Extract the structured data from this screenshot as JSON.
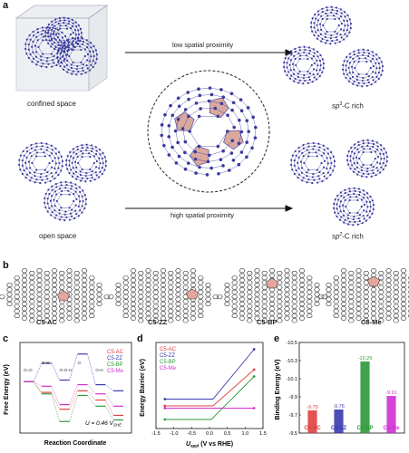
{
  "panel_a": {
    "label": "a",
    "top_arrow_label": "low spatial proximity",
    "bottom_arrow_label": "high spatial proximity",
    "left_top_caption": "confined space",
    "left_bottom_caption": "open space",
    "right_top_caption_main": "sp",
    "right_top_caption_sup": "3",
    "right_top_caption_tail": "-C rich",
    "right_bottom_caption_main": "sp",
    "right_bottom_caption_sup": "2",
    "right_bottom_caption_tail": "-C rich",
    "atom_color": "#3b3a9e",
    "face_color": "#d9a9a0"
  },
  "panel_b": {
    "label": "b",
    "models": [
      {
        "name": "C5-AC"
      },
      {
        "name": "C5-ZZ"
      },
      {
        "name": "C5-BP"
      },
      {
        "name": "C5-Me"
      }
    ],
    "sheet_color": "#3f3f3f",
    "pentagon_color": "#e7a49a"
  },
  "chart_data": [
    {
      "panel": "c",
      "type": "line",
      "ylabel": "Free Energy (eV)",
      "xlabel": "Reaction Coordinate",
      "annotation": "U = 0.46 V",
      "annotation_sub": "SHE",
      "legend_placement": "top-right",
      "series": [
        {
          "name": "C5-AC",
          "color": "#e04040",
          "values": [
            0,
            -0.35,
            -0.9,
            -0.3,
            -0.6,
            -1.1
          ]
        },
        {
          "name": "C5-ZZ",
          "color": "#3a3ab0",
          "values": [
            0,
            0.6,
            0.05,
            0.9,
            -0.1,
            -0.3
          ]
        },
        {
          "name": "C5-BP",
          "color": "#2c9a3a",
          "values": [
            0,
            -0.4,
            -1.3,
            -0.45,
            -0.8,
            -1.25
          ]
        },
        {
          "name": "C5-Me",
          "color": "#d030d0",
          "values": [
            0,
            -0.15,
            -0.75,
            -0.1,
            -0.4,
            -0.8
          ]
        }
      ],
      "step_labels": [
        "O=O",
        "O-O",
        "O-O-H",
        "O",
        "O-H"
      ]
    },
    {
      "panel": "d",
      "type": "line",
      "ylabel": "Energy Barrier (eV)",
      "xlabel": "U",
      "xlabel_sub": "appl",
      "xlabel_tail": " (V vs RHE)",
      "xlim": [
        -1.5,
        1.5
      ],
      "xticks": [
        "-1.5",
        "-1.0",
        "-0.5",
        "0.0",
        "0.5",
        "1.0",
        "1.5"
      ],
      "legend_placement": "top-left",
      "series": [
        {
          "name": "C5-AC",
          "color": "#e04040",
          "x": [
            -1.25,
            0.1,
            1.25
          ],
          "values": [
            0.2,
            0.2,
            1.0
          ]
        },
        {
          "name": "C5-ZZ",
          "color": "#3a3ab0",
          "x": [
            -1.25,
            0.1,
            1.25
          ],
          "values": [
            0.35,
            0.35,
            1.45
          ]
        },
        {
          "name": "C5-BP",
          "color": "#2c9a3a",
          "x": [
            -1.25,
            0.05,
            1.25
          ],
          "values": [
            -0.1,
            -0.1,
            0.85
          ]
        },
        {
          "name": "C5-Me",
          "color": "#d030d0",
          "x": [
            -1.25,
            1.25
          ],
          "values": [
            0.15,
            0.15
          ]
        }
      ]
    },
    {
      "panel": "e",
      "type": "bar",
      "ylabel": "Binding Energy (eV)",
      "ylim": [
        -9.5,
        -10.5
      ],
      "yticks": [
        "-9.5",
        "-9.7",
        "-9.9",
        "-10.1",
        "-10.3",
        "-10.5"
      ],
      "categories": [
        "C5-AC",
        "C5-ZZ",
        "C5-BP",
        "C5-Me"
      ],
      "values": [
        -9.75,
        -9.76,
        -10.29,
        -9.91
      ],
      "value_labels": [
        "-9.75",
        "-9.76",
        "-10.29",
        "-9.91"
      ],
      "colors": [
        "#e04040",
        "#3a3ab0",
        "#2c9a3a",
        "#d030d0"
      ]
    }
  ],
  "panel_labels": {
    "c": "c",
    "d": "d",
    "e": "e"
  }
}
